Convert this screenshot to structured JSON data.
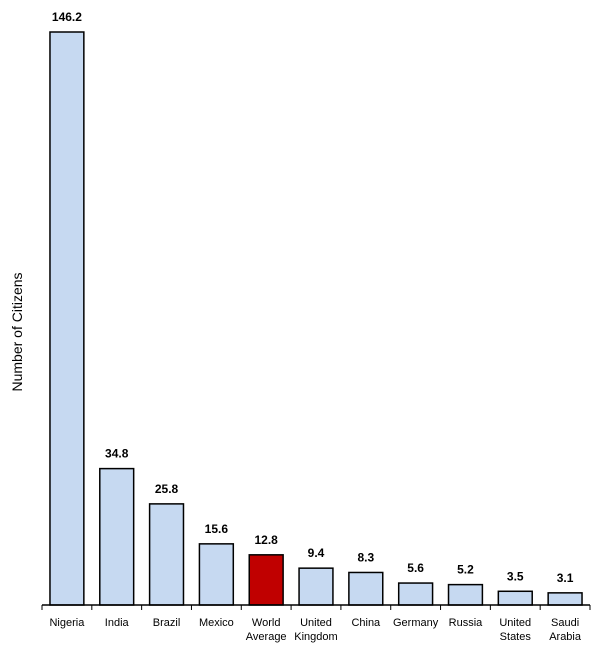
{
  "chart_data": {
    "type": "bar",
    "title": "",
    "xlabel": "",
    "ylabel": "Number of Citizens",
    "ylim": [
      0,
      146.2
    ],
    "grid": false,
    "categories": [
      [
        "Nigeria"
      ],
      [
        "India"
      ],
      [
        "Brazil"
      ],
      [
        "Mexico"
      ],
      [
        "World",
        "Average"
      ],
      [
        "United",
        "Kingdom"
      ],
      [
        "China"
      ],
      [
        "Germany"
      ],
      [
        "Russia"
      ],
      [
        "United",
        "States"
      ],
      [
        "Saudi",
        "Arabia"
      ]
    ],
    "values": [
      146.2,
      34.8,
      25.8,
      15.6,
      12.8,
      9.4,
      8.3,
      5.6,
      5.2,
      3.5,
      3.1
    ],
    "value_labels": [
      "146.2",
      "34.8",
      "25.8",
      "15.6",
      "12.8",
      "9.4",
      "8.3",
      "5.6",
      "5.2",
      "3.5",
      "3.1"
    ],
    "colors": [
      "#c6d9f1",
      "#c6d9f1",
      "#c6d9f1",
      "#c6d9f1",
      "#c00000",
      "#c6d9f1",
      "#c6d9f1",
      "#c6d9f1",
      "#c6d9f1",
      "#c6d9f1",
      "#c6d9f1"
    ]
  }
}
